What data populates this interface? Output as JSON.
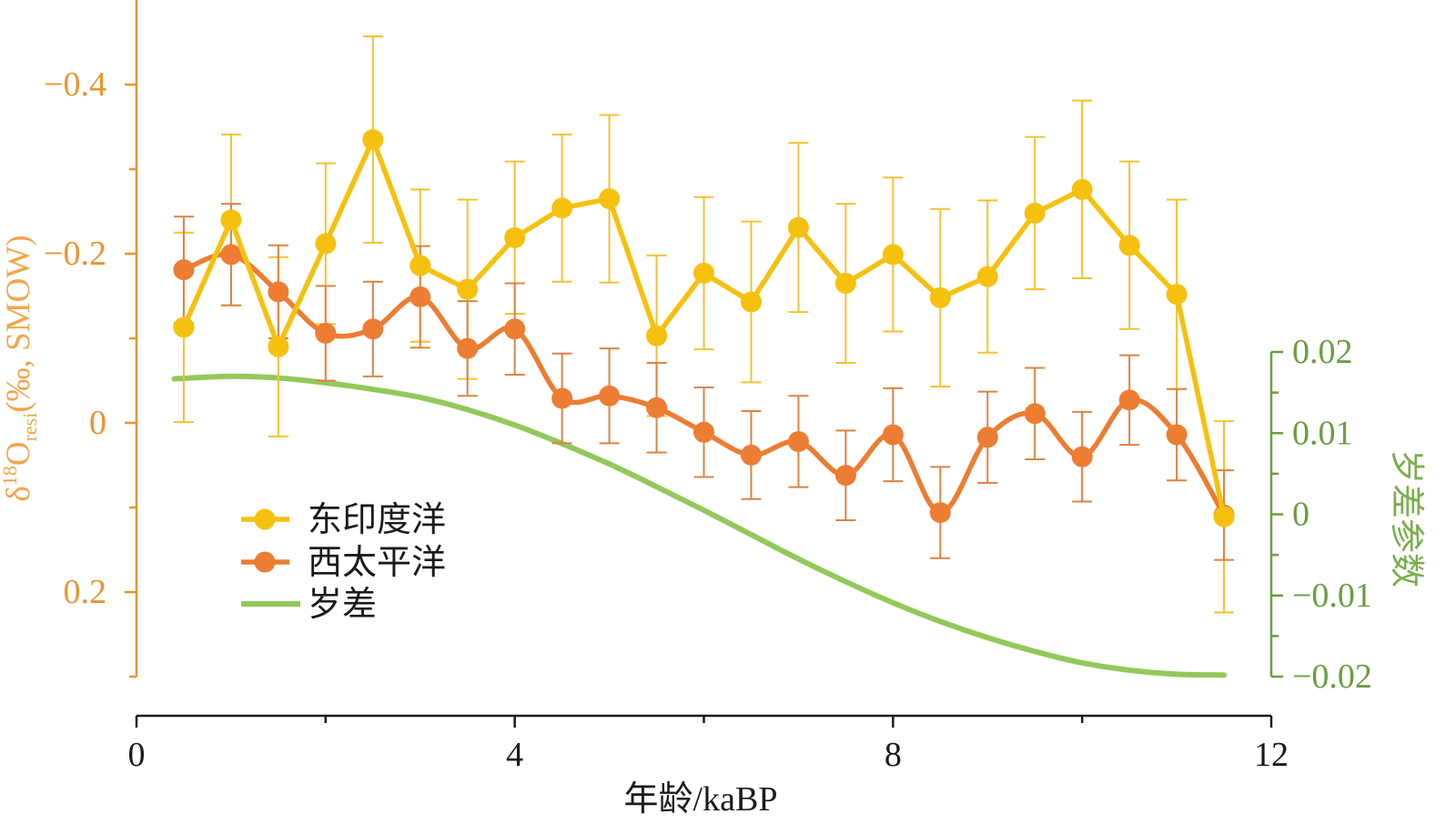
{
  "chart_data": {
    "type": "line",
    "xlabel": "年龄/kaBP",
    "xlim": [
      0,
      12
    ],
    "xticks": [
      {
        "value": 0,
        "label": "0"
      },
      {
        "value": 4,
        "label": "4"
      },
      {
        "value": 8,
        "label": "8"
      },
      {
        "value": 12,
        "label": "12"
      }
    ],
    "xticks_minor": [
      2,
      6,
      10
    ],
    "ylabel_left": {
      "prefix": "δ",
      "sup": "18",
      "main": "O",
      "sub": "resi",
      "suffix": "(‰, SMOW)"
    },
    "ylim_left": [
      -0.5,
      0.3
    ],
    "yleft_inverted": true,
    "yticks_left": [
      {
        "value": -0.4,
        "label": "−0.4"
      },
      {
        "value": -0.2,
        "label": "−0.2"
      },
      {
        "value": 0,
        "label": "0"
      },
      {
        "value": 0.2,
        "label": "0.2"
      }
    ],
    "yticks_left_minor": [
      -0.3,
      -0.1,
      0.1,
      0.3
    ],
    "ylabel_right": "岁差参数",
    "ylim_right": [
      -0.02,
      0.02
    ],
    "yticks_right": [
      {
        "value": 0.02,
        "label": "0.02"
      },
      {
        "value": 0.01,
        "label": "0.01"
      },
      {
        "value": 0,
        "label": "0"
      },
      {
        "value": -0.01,
        "label": "−0.01"
      },
      {
        "value": -0.02,
        "label": "−0.02"
      }
    ],
    "yticks_right_minor": [
      0.015,
      0.005,
      -0.005,
      -0.015
    ],
    "grid": false,
    "legend_position": "lower-left",
    "colors": {
      "left_axis": "#E8952E",
      "left_axis_label": "#F0A64A",
      "right_axis": "#6A9E3F",
      "right_axis_label": "#7AAE4C",
      "x_axis": "#1A1A1A",
      "text": "#1A1A1A"
    },
    "series": [
      {
        "name": "东印度洋",
        "color": "#F6C10E",
        "error_color": "#F3C233",
        "markers": true,
        "smooth": false,
        "secondary_y": false,
        "x": [
          0.5,
          1,
          1.5,
          2,
          2.5,
          3,
          3.5,
          4,
          4.5,
          5,
          5.5,
          6,
          6.5,
          7,
          7.5,
          8,
          8.5,
          9,
          9.5,
          10,
          10.5,
          11,
          11.5
        ],
        "y": [
          -0.113,
          -0.24,
          -0.09,
          -0.212,
          -0.335,
          -0.186,
          -0.158,
          -0.219,
          -0.254,
          -0.265,
          -0.103,
          -0.177,
          -0.143,
          -0.231,
          -0.165,
          -0.199,
          -0.148,
          -0.173,
          -0.248,
          -0.276,
          -0.21,
          -0.152,
          0.111
        ],
        "error": [
          0.112,
          0.101,
          0.106,
          0.095,
          0.122,
          0.09,
          0.106,
          0.09,
          0.087,
          0.099,
          0.095,
          0.09,
          0.095,
          0.1,
          0.094,
          0.091,
          0.105,
          0.09,
          0.09,
          0.105,
          0.099,
          0.112,
          0.113
        ]
      },
      {
        "name": "西太平洋",
        "color": "#EC7D32",
        "error_color": "#DC8441",
        "markers": true,
        "smooth": true,
        "secondary_y": false,
        "x": [
          0.5,
          1,
          1.5,
          2,
          2.5,
          3,
          3.5,
          4,
          4.5,
          5,
          5.5,
          6,
          6.5,
          7,
          7.5,
          8,
          8.5,
          9,
          9.5,
          10,
          10.5,
          11,
          11.5
        ],
        "y": [
          -0.181,
          -0.199,
          -0.155,
          -0.106,
          -0.111,
          -0.149,
          -0.088,
          -0.111,
          -0.029,
          -0.032,
          -0.018,
          0.011,
          0.038,
          0.022,
          0.062,
          0.014,
          0.106,
          0.017,
          -0.011,
          0.04,
          -0.027,
          0.014,
          0.109
        ],
        "error": [
          0.063,
          0.06,
          0.055,
          0.056,
          0.056,
          0.06,
          0.056,
          0.054,
          0.053,
          0.056,
          0.053,
          0.053,
          0.052,
          0.054,
          0.053,
          0.055,
          0.054,
          0.054,
          0.054,
          0.053,
          0.053,
          0.054,
          0.053
        ]
      },
      {
        "name": "岁差",
        "color": "#93C85B",
        "markers": false,
        "smooth": true,
        "secondary_y": true,
        "x": [
          0.4,
          1,
          1.5,
          2,
          2.5,
          3,
          3.5,
          4,
          4.5,
          5,
          5.5,
          6,
          6.5,
          7,
          7.5,
          8,
          8.5,
          9,
          9.5,
          10,
          10.5,
          11,
          11.5
        ],
        "y": [
          0.0167,
          0.017,
          0.0168,
          0.0162,
          0.0154,
          0.0144,
          0.0129,
          0.011,
          0.0087,
          0.0062,
          0.0034,
          0.0005,
          -0.0025,
          -0.0055,
          -0.0083,
          -0.0109,
          -0.0132,
          -0.0152,
          -0.0169,
          -0.0183,
          -0.0192,
          -0.0197,
          -0.0198
        ]
      }
    ]
  }
}
